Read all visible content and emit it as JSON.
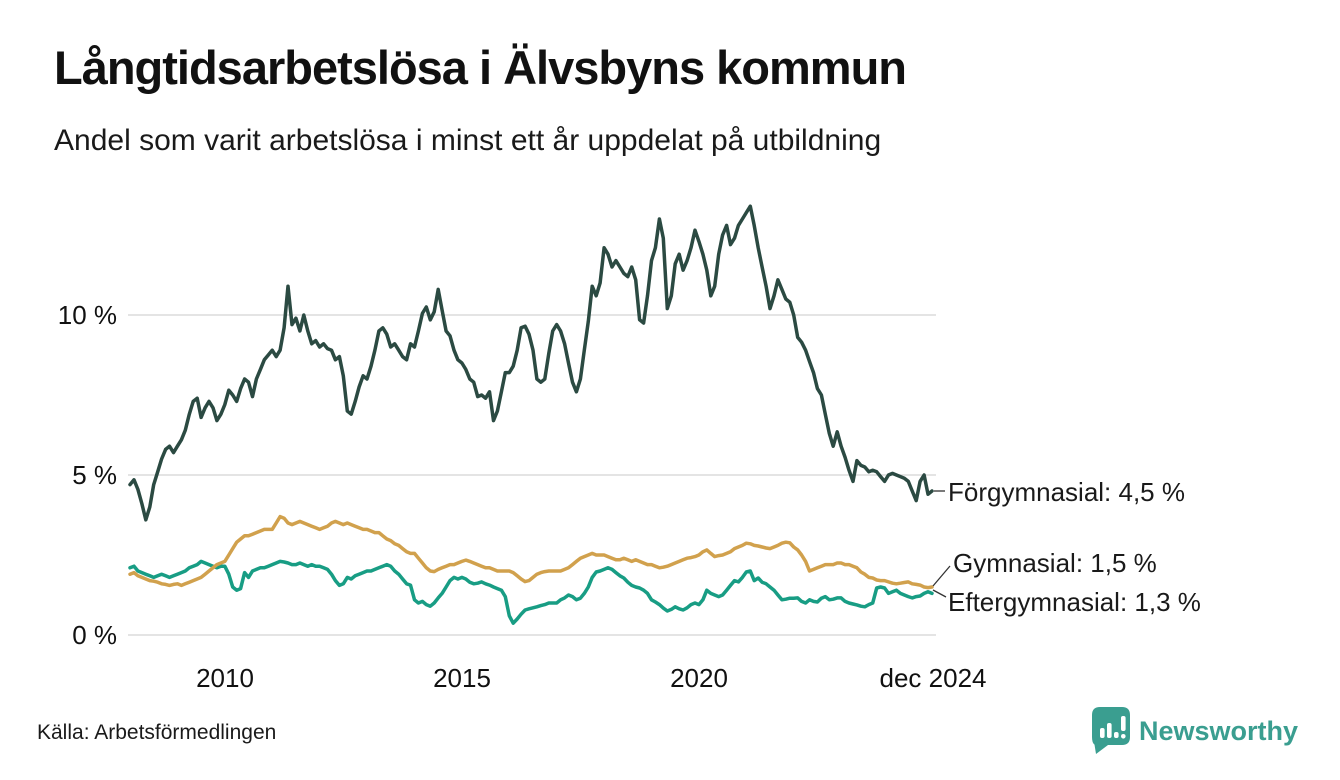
{
  "header": {
    "title": "Långtidsarbetslösa i Älvsbyns kommun",
    "subtitle": "Andel som varit arbetslösa i minst ett år uppdelat på utbildning"
  },
  "footer": {
    "source": "Källa: Arbetsförmedlingen",
    "brand": "Newsworthy"
  },
  "colors": {
    "forgymnasial": "#2b4a42",
    "gymnasial": "#d1a14d",
    "eftergymnasial": "#189d84",
    "gridline": "#dcdcdc",
    "connector": "#333333",
    "brand_teal": "#3a9e90"
  },
  "chart_data": {
    "type": "line",
    "title": "Långtidsarbetslösa i Älvsbyns kommun",
    "subtitle": "Andel som varit arbetslösa i minst ett år uppdelat på utbildning",
    "unit": "%",
    "x_range": {
      "from": "2008-01",
      "to": "2024-12",
      "interval": "month"
    },
    "ylim": [
      0,
      14
    ],
    "grid": "horizontal",
    "legend_position": "end-of-line-labels",
    "y_ticks": [
      {
        "label": "10 %",
        "value": 10
      },
      {
        "label": "5 %",
        "value": 5
      },
      {
        "label": "0 %",
        "value": 0
      }
    ],
    "x_ticks": [
      {
        "label": "2010",
        "year": 2010
      },
      {
        "label": "2015",
        "year": 2015
      },
      {
        "label": "2020",
        "year": 2020
      },
      {
        "label": "dec 2024",
        "year": 2024.9167
      }
    ],
    "series": [
      {
        "name": "Förgymnasial",
        "color": "#2b4a42",
        "end_value": 4.5,
        "end_label": "Förgymnasial: 4,5 %",
        "values": [
          4.7,
          4.85,
          4.55,
          4.1,
          3.6,
          4.0,
          4.7,
          5.1,
          5.5,
          5.8,
          5.9,
          5.7,
          5.9,
          6.1,
          6.4,
          6.9,
          7.3,
          7.4,
          6.8,
          7.1,
          7.3,
          7.1,
          6.7,
          6.9,
          7.2,
          7.65,
          7.5,
          7.3,
          7.7,
          8.0,
          7.9,
          7.45,
          8.0,
          8.3,
          8.6,
          8.75,
          8.9,
          8.7,
          8.9,
          9.6,
          10.9,
          9.7,
          9.9,
          9.5,
          10.0,
          9.5,
          9.1,
          9.2,
          9.0,
          9.1,
          8.95,
          8.9,
          8.6,
          8.7,
          8.1,
          7.0,
          6.9,
          7.3,
          7.75,
          8.1,
          8.0,
          8.4,
          8.9,
          9.5,
          9.6,
          9.4,
          9.0,
          9.1,
          8.9,
          8.7,
          8.6,
          9.1,
          9.0,
          9.5,
          10.05,
          10.25,
          9.85,
          10.1,
          10.8,
          10.15,
          9.5,
          9.35,
          8.9,
          8.6,
          8.5,
          8.3,
          8.0,
          7.9,
          7.45,
          7.5,
          7.4,
          7.6,
          6.7,
          7.0,
          7.6,
          8.2,
          8.2,
          8.4,
          8.9,
          9.6,
          9.65,
          9.4,
          8.9,
          8.0,
          7.9,
          8.0,
          8.8,
          9.5,
          9.7,
          9.5,
          9.1,
          8.5,
          7.9,
          7.6,
          8.0,
          8.9,
          9.8,
          10.9,
          10.6,
          11.0,
          12.1,
          11.9,
          11.5,
          11.7,
          11.5,
          11.3,
          11.2,
          11.5,
          11.1,
          9.85,
          9.75,
          10.6,
          11.7,
          12.1,
          13.0,
          12.4,
          10.2,
          10.6,
          11.6,
          11.9,
          11.4,
          11.7,
          12.1,
          12.65,
          12.3,
          11.9,
          11.4,
          10.6,
          10.9,
          11.9,
          12.5,
          12.8,
          12.2,
          12.4,
          12.8,
          13.0,
          13.2,
          13.4,
          12.8,
          12.1,
          11.5,
          10.9,
          10.2,
          10.6,
          11.1,
          10.8,
          10.5,
          10.4,
          10.0,
          9.3,
          9.15,
          8.9,
          8.55,
          8.2,
          7.7,
          7.5,
          6.9,
          6.3,
          5.9,
          6.35,
          5.9,
          5.55,
          5.15,
          4.8,
          5.45,
          5.3,
          5.25,
          5.1,
          5.15,
          5.1,
          4.95,
          4.8,
          5.0,
          5.05,
          5.0,
          4.95,
          4.9,
          4.8,
          4.5,
          4.2,
          4.8,
          5.0,
          4.4,
          4.5
        ]
      },
      {
        "name": "Gymnasial",
        "color": "#d1a14d",
        "end_value": 1.5,
        "end_label": "Gymnasial: 1,5 %",
        "values": [
          1.9,
          1.95,
          1.85,
          1.8,
          1.75,
          1.7,
          1.68,
          1.65,
          1.6,
          1.58,
          1.55,
          1.58,
          1.6,
          1.55,
          1.6,
          1.65,
          1.7,
          1.75,
          1.8,
          1.9,
          2.0,
          2.1,
          2.2,
          2.25,
          2.3,
          2.5,
          2.7,
          2.9,
          3.0,
          3.1,
          3.1,
          3.15,
          3.2,
          3.25,
          3.3,
          3.3,
          3.3,
          3.5,
          3.7,
          3.65,
          3.5,
          3.45,
          3.5,
          3.55,
          3.5,
          3.45,
          3.4,
          3.35,
          3.3,
          3.35,
          3.4,
          3.5,
          3.55,
          3.5,
          3.45,
          3.5,
          3.45,
          3.4,
          3.35,
          3.3,
          3.3,
          3.25,
          3.2,
          3.2,
          3.1,
          3.0,
          2.95,
          2.85,
          2.8,
          2.7,
          2.6,
          2.55,
          2.55,
          2.4,
          2.25,
          2.1,
          2.0,
          1.98,
          2.05,
          2.1,
          2.15,
          2.2,
          2.2,
          2.25,
          2.3,
          2.34,
          2.3,
          2.25,
          2.2,
          2.15,
          2.1,
          2.1,
          2.05,
          2.0,
          2.0,
          2.0,
          2.0,
          1.95,
          1.85,
          1.75,
          1.67,
          1.7,
          1.8,
          1.9,
          1.95,
          1.98,
          2.0,
          2.0,
          2.0,
          2.0,
          2.05,
          2.1,
          2.2,
          2.3,
          2.4,
          2.45,
          2.5,
          2.55,
          2.5,
          2.5,
          2.5,
          2.45,
          2.4,
          2.35,
          2.35,
          2.4,
          2.35,
          2.3,
          2.35,
          2.3,
          2.25,
          2.2,
          2.2,
          2.15,
          2.1,
          2.12,
          2.15,
          2.2,
          2.25,
          2.3,
          2.35,
          2.4,
          2.42,
          2.45,
          2.5,
          2.6,
          2.66,
          2.55,
          2.45,
          2.48,
          2.5,
          2.55,
          2.6,
          2.7,
          2.75,
          2.8,
          2.87,
          2.85,
          2.8,
          2.78,
          2.75,
          2.72,
          2.7,
          2.75,
          2.8,
          2.87,
          2.9,
          2.88,
          2.75,
          2.66,
          2.5,
          2.3,
          2.0,
          2.05,
          2.1,
          2.15,
          2.2,
          2.2,
          2.2,
          2.25,
          2.25,
          2.2,
          2.2,
          2.15,
          2.1,
          1.97,
          1.9,
          1.8,
          1.78,
          1.72,
          1.7,
          1.7,
          1.66,
          1.62,
          1.6,
          1.62,
          1.64,
          1.66,
          1.6,
          1.58,
          1.56,
          1.5,
          1.48,
          1.5
        ]
      },
      {
        "name": "Eftergymnasial",
        "color": "#189d84",
        "end_value": 1.3,
        "end_label": "Eftergymnasial: 1,3 %",
        "values": [
          2.1,
          2.15,
          2.0,
          1.95,
          1.9,
          1.85,
          1.8,
          1.85,
          1.9,
          1.85,
          1.8,
          1.85,
          1.9,
          1.95,
          2.0,
          2.1,
          2.15,
          2.2,
          2.3,
          2.25,
          2.2,
          2.15,
          2.1,
          2.15,
          2.15,
          1.9,
          1.5,
          1.4,
          1.45,
          1.95,
          1.8,
          2.0,
          2.05,
          2.1,
          2.1,
          2.15,
          2.2,
          2.25,
          2.3,
          2.28,
          2.25,
          2.2,
          2.2,
          2.25,
          2.2,
          2.15,
          2.2,
          2.15,
          2.15,
          2.1,
          2.05,
          1.9,
          1.7,
          1.55,
          1.6,
          1.8,
          1.75,
          1.85,
          1.9,
          1.95,
          2.0,
          2.0,
          2.05,
          2.1,
          2.15,
          2.2,
          2.15,
          2.0,
          1.9,
          1.75,
          1.6,
          1.56,
          1.1,
          1.0,
          1.05,
          0.95,
          0.9,
          1.0,
          1.16,
          1.3,
          1.5,
          1.7,
          1.8,
          1.75,
          1.8,
          1.75,
          1.65,
          1.6,
          1.62,
          1.66,
          1.6,
          1.56,
          1.5,
          1.45,
          1.4,
          1.2,
          0.6,
          0.37,
          0.5,
          0.65,
          0.78,
          0.82,
          0.85,
          0.88,
          0.92,
          0.95,
          1.0,
          1.0,
          1.0,
          1.1,
          1.16,
          1.25,
          1.2,
          1.1,
          1.15,
          1.3,
          1.5,
          1.8,
          1.97,
          2.0,
          2.05,
          2.1,
          2.05,
          1.95,
          1.85,
          1.78,
          1.65,
          1.55,
          1.5,
          1.47,
          1.4,
          1.3,
          1.1,
          1.03,
          0.95,
          0.84,
          0.75,
          0.8,
          0.88,
          0.82,
          0.78,
          0.85,
          0.95,
          1.0,
          0.95,
          1.1,
          1.4,
          1.3,
          1.25,
          1.2,
          1.25,
          1.4,
          1.55,
          1.7,
          1.66,
          1.8,
          1.97,
          2.0,
          1.7,
          1.78,
          1.65,
          1.6,
          1.5,
          1.4,
          1.25,
          1.1,
          1.12,
          1.15,
          1.15,
          1.16,
          1.05,
          1.0,
          1.1,
          1.05,
          1.03,
          1.15,
          1.2,
          1.1,
          1.12,
          1.16,
          1.16,
          1.05,
          1.0,
          0.97,
          0.94,
          0.9,
          0.88,
          0.95,
          1.0,
          1.47,
          1.5,
          1.47,
          1.3,
          1.35,
          1.4,
          1.3,
          1.25,
          1.2,
          1.16,
          1.2,
          1.22,
          1.3,
          1.35,
          1.3
        ]
      }
    ]
  }
}
